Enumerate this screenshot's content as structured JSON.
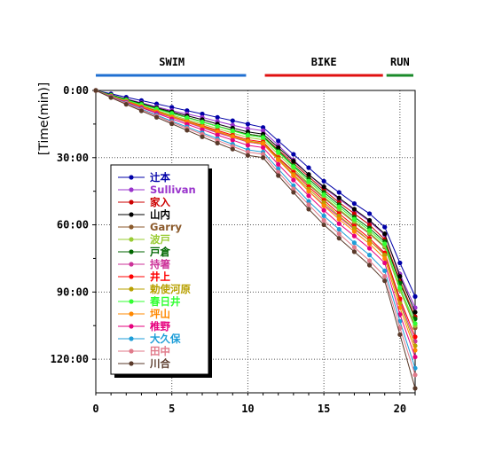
{
  "chart_data": {
    "type": "line",
    "ylabel": "[Time(min)]",
    "xlim": [
      0,
      21
    ],
    "ylim": [
      0,
      135
    ],
    "x_ticks": [
      "0",
      "5",
      "10",
      "15",
      "20"
    ],
    "x_tick_values": [
      0,
      5,
      10,
      15,
      20
    ],
    "y_ticks": [
      "0:00",
      "30:00",
      "60:00",
      "90:00",
      "120:00"
    ],
    "y_tick_values": [
      0,
      30,
      60,
      90,
      120
    ],
    "y_inverted": true,
    "grid": true,
    "legend_position": "bottom-left",
    "phases": [
      {
        "label": "SWIM",
        "start": 0,
        "end": 10,
        "color": "#1f6fd1"
      },
      {
        "label": "BIKE",
        "start": 11,
        "end": 19,
        "color": "#e01010"
      },
      {
        "label": "RUN",
        "start": 19,
        "end": 21,
        "color": "#1a8a2a"
      }
    ],
    "x": [
      0,
      1,
      2,
      3,
      4,
      5,
      6,
      7,
      8,
      9,
      10,
      11,
      12,
      13,
      14,
      15,
      16,
      17,
      18,
      19,
      20,
      21
    ],
    "series": [
      {
        "name": "辻本",
        "color": "#0000a8",
        "values": [
          0,
          1.5,
          3,
          4.5,
          6,
          7.5,
          9,
          10.5,
          12,
          13.5,
          15,
          16.5,
          22.5,
          28.5,
          34.5,
          40.5,
          45.5,
          50.5,
          55,
          61,
          77,
          92
        ]
      },
      {
        "name": "Sullivan",
        "color": "#9933cc",
        "values": [
          0,
          2,
          3.8,
          5.5,
          7.3,
          9,
          10.5,
          12,
          13.8,
          15.5,
          17,
          18,
          24.5,
          31,
          37.5,
          43.5,
          48.5,
          53.5,
          58.5,
          64.5,
          82,
          97
        ]
      },
      {
        "name": "家入",
        "color": "#cc0000",
        "values": [
          0,
          2.2,
          4.2,
          6.2,
          8.2,
          10,
          12,
          14,
          16,
          17.7,
          19.5,
          20.5,
          26.5,
          32.5,
          38.5,
          44.5,
          50,
          55,
          60,
          66.5,
          85,
          101
        ]
      },
      {
        "name": "山内",
        "color": "#000000",
        "values": [
          0,
          2,
          3.9,
          5.8,
          7.7,
          9.5,
          11.3,
          13,
          15,
          16.8,
          18.5,
          19.5,
          25.5,
          31.5,
          37.5,
          43,
          48,
          53,
          58,
          64,
          83,
          99
        ]
      },
      {
        "name": "Garry",
        "color": "#8b5a2b",
        "values": [
          0,
          2.8,
          5.2,
          7.5,
          9.8,
          12,
          14.2,
          16.4,
          18.6,
          20.8,
          23,
          24,
          30,
          36,
          42,
          48,
          53.5,
          59,
          64,
          70,
          89,
          106
        ]
      },
      {
        "name": "波戸",
        "color": "#99cc33",
        "values": [
          0,
          2.3,
          4.5,
          6.7,
          8.9,
          11,
          13,
          15,
          17,
          19,
          21,
          22,
          28.5,
          35,
          41.5,
          47.5,
          53,
          58.5,
          63.5,
          69.5,
          89,
          105
        ]
      },
      {
        "name": "戸倉",
        "color": "#006600",
        "values": [
          0,
          2.1,
          4.1,
          6,
          8,
          10,
          12,
          14,
          16,
          17.8,
          19.5,
          20.5,
          27,
          33.5,
          39.5,
          45.5,
          51,
          56.5,
          61.5,
          67.5,
          86,
          102
        ]
      },
      {
        "name": "持箸",
        "color": "#cc3399",
        "values": [
          0,
          2.6,
          5,
          7.4,
          9.8,
          12,
          14.3,
          16.6,
          18.9,
          21,
          23,
          24,
          31,
          38,
          45,
          51,
          56.5,
          62,
          67,
          73,
          94,
          112
        ]
      },
      {
        "name": "井上",
        "color": "#ff0000",
        "values": [
          0,
          2.4,
          4.7,
          7,
          9.2,
          11.5,
          13.6,
          15.7,
          17.8,
          20,
          22,
          23,
          30,
          36.5,
          43,
          49,
          55,
          60.5,
          66,
          72.5,
          93,
          110
        ]
      },
      {
        "name": "勅使河原",
        "color": "#b8a000",
        "values": [
          0,
          2.5,
          4.8,
          7.1,
          9.4,
          11.5,
          13.8,
          16,
          18.3,
          20.5,
          22.5,
          23.5,
          30.5,
          37.5,
          44,
          50,
          56,
          61.5,
          67,
          73.5,
          95,
          114
        ]
      },
      {
        "name": "春日井",
        "color": "#33ff33",
        "values": [
          0,
          2.2,
          4.3,
          6.3,
          8.3,
          10.3,
          12.2,
          14.1,
          16,
          18,
          20,
          21,
          27.5,
          34,
          40.5,
          46.5,
          52,
          57.5,
          62.5,
          68.5,
          88,
          104
        ]
      },
      {
        "name": "坪山",
        "color": "#ff8800",
        "values": [
          0,
          2.5,
          4.9,
          7.2,
          9.5,
          11.8,
          14,
          16.2,
          18.4,
          20.7,
          22.8,
          23.8,
          31,
          38,
          45,
          51.5,
          57.5,
          63,
          68.5,
          75,
          97,
          116
        ]
      },
      {
        "name": "椎野",
        "color": "#e6007e",
        "values": [
          0,
          2.7,
          5.2,
          7.7,
          10.2,
          12.7,
          15.1,
          17.5,
          19.9,
          22.2,
          24.5,
          25.5,
          33,
          40,
          47,
          53.5,
          59.5,
          65,
          70.5,
          77,
          100,
          119
        ]
      },
      {
        "name": "大久保",
        "color": "#1e9ed8",
        "values": [
          0,
          2.9,
          5.6,
          8.3,
          11,
          13.7,
          16.3,
          18.9,
          21.5,
          24,
          26.5,
          27.5,
          35,
          42.5,
          49.5,
          56,
          62,
          68,
          73.5,
          80.5,
          103,
          124
        ]
      },
      {
        "name": "田中",
        "color": "#e07a8a",
        "values": [
          0,
          3,
          5.8,
          8.6,
          11.4,
          14.2,
          16.9,
          19.6,
          22.3,
          25,
          27.5,
          28.5,
          36.5,
          44,
          51,
          58,
          64,
          70,
          76,
          83,
          106,
          127
        ]
      },
      {
        "name": "川合",
        "color": "#5a3a2a",
        "values": [
          0,
          3.2,
          6.2,
          9.1,
          12,
          14.9,
          17.8,
          20.7,
          23.5,
          26.2,
          29,
          30,
          38,
          45.5,
          53,
          60,
          66,
          72,
          78,
          85,
          109,
          133
        ]
      }
    ]
  }
}
